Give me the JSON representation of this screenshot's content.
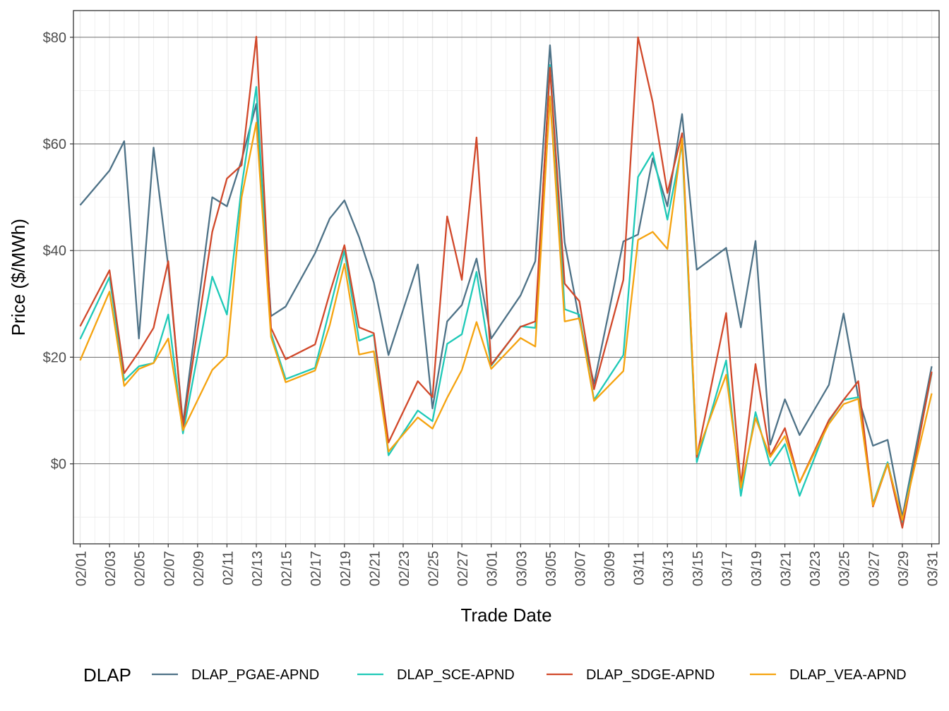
{
  "chart_data": {
    "type": "line",
    "title": "",
    "xlabel": "Trade Date",
    "ylabel": "Price ($/MWh)",
    "ylim": [
      -15,
      85
    ],
    "y_ticks": [
      0,
      20,
      40,
      60,
      80
    ],
    "y_tick_labels": [
      "$0",
      "$20",
      "$40",
      "$60",
      "$80"
    ],
    "x_tick_labels": [
      "02/01",
      "02/03",
      "02/05",
      "02/07",
      "02/09",
      "02/11",
      "02/13",
      "02/15",
      "02/17",
      "02/19",
      "02/21",
      "02/23",
      "02/25",
      "02/27",
      "03/01",
      "03/03",
      "03/05",
      "03/07",
      "03/09",
      "03/11",
      "03/13",
      "03/15",
      "03/17",
      "03/19",
      "03/21",
      "03/23",
      "03/25",
      "03/27",
      "03/29",
      "03/31"
    ],
    "grid": true,
    "legend_title": "DLAP",
    "legend_position": "bottom",
    "x": [
      "02/01",
      "02/03",
      "02/04",
      "02/05",
      "02/06",
      "02/07",
      "02/08",
      "02/10",
      "02/11",
      "02/12",
      "02/13",
      "02/14",
      "02/15",
      "02/17",
      "02/18",
      "02/19",
      "02/20",
      "02/21",
      "02/22",
      "02/24",
      "02/25",
      "02/26",
      "02/27",
      "02/28",
      "03/01",
      "03/03",
      "03/04",
      "03/05",
      "03/06",
      "03/07",
      "03/08",
      "03/10",
      "03/11",
      "03/12",
      "03/13",
      "03/14",
      "03/15",
      "03/17",
      "03/18",
      "03/19",
      "03/20",
      "03/21",
      "03/22",
      "03/24",
      "03/25",
      "03/26",
      "03/27",
      "03/28",
      "03/29",
      "03/31"
    ],
    "series": [
      {
        "name": "DLAP_PGAE-APND",
        "color": "#4e7287",
        "values": [
          48.5,
          55,
          60.5,
          23.5,
          59.3,
          37,
          7.5,
          50,
          48.3,
          57,
          67.5,
          27.7,
          29.5,
          39.5,
          46,
          49.4,
          42.5,
          34,
          20.4,
          37.4,
          10.4,
          26.7,
          29.8,
          38.5,
          23.5,
          31.6,
          38,
          78.5,
          41.5,
          27,
          15,
          41.7,
          43,
          57.3,
          48.3,
          65.6,
          36.4,
          40.5,
          25.6,
          41.8,
          3.6,
          12.1,
          5.4,
          14.8,
          28.2,
          12.5,
          3.4,
          4.5,
          -10,
          18.3
        ]
      },
      {
        "name": "DLAP_SCE-APND",
        "color": "#1ec9b7",
        "values": [
          23.4,
          35,
          15.6,
          18.3,
          18.9,
          28,
          5.7,
          35.1,
          28,
          52,
          70.7,
          24.5,
          15.9,
          18,
          29,
          40,
          23.1,
          24.2,
          1.6,
          10,
          8,
          22.5,
          24.3,
          36,
          18.4,
          25.8,
          25.5,
          74.8,
          29,
          28,
          12,
          20.4,
          53.8,
          58.4,
          45.8,
          60,
          0.3,
          19.4,
          -6,
          9.7,
          -0.3,
          3.7,
          -6,
          8,
          12,
          12.5,
          -7.5,
          0.3,
          -11,
          17
        ]
      },
      {
        "name": "DLAP_SDGE-APND",
        "color": "#d1482a",
        "values": [
          25.8,
          36.3,
          17,
          21,
          25.5,
          38,
          6.8,
          43.5,
          53.5,
          56,
          80.1,
          25.5,
          19.6,
          22.4,
          32,
          41,
          25.6,
          24.5,
          4,
          15.5,
          12.5,
          46.4,
          34.5,
          61.2,
          18.6,
          25.7,
          26.7,
          74.3,
          33.8,
          30.5,
          14,
          34.5,
          80,
          67.8,
          50.8,
          62,
          1.3,
          28.3,
          -4,
          18.7,
          1.5,
          6.7,
          -3.5,
          8.2,
          12,
          15.5,
          -8,
          0,
          -12,
          17.3
        ]
      },
      {
        "name": "DLAP_VEA-APND",
        "color": "#f5a30f",
        "values": [
          19.4,
          32.3,
          14.6,
          17.8,
          18.9,
          23.5,
          6.3,
          17.6,
          20.3,
          50,
          64,
          23.8,
          15.3,
          17.5,
          26,
          37.5,
          20.5,
          21.1,
          2.3,
          8.7,
          6.6,
          12.4,
          17.6,
          26.6,
          17.8,
          23.6,
          22,
          68.9,
          26.7,
          27.3,
          11.8,
          17.4,
          42,
          43.5,
          40.3,
          61,
          1.8,
          16.7,
          -4.5,
          8.6,
          1.3,
          5.2,
          -3.5,
          7.5,
          11.2,
          12.2,
          -7.8,
          0,
          -10.5,
          13.2
        ]
      }
    ]
  }
}
